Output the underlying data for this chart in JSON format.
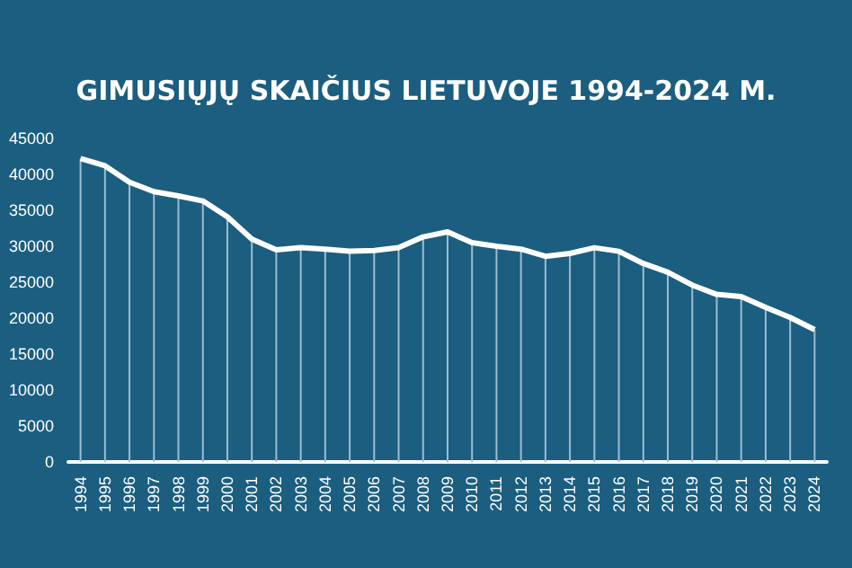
{
  "chart_data": {
    "type": "line",
    "title": "GIMUSIŲJŲ SKAIČIUS LIETUVOJE 1994-2024 M.",
    "categories": [
      "1994",
      "1995",
      "1996",
      "1997",
      "1998",
      "1999",
      "2000",
      "2001",
      "2002",
      "2003",
      "2004",
      "2005",
      "2006",
      "2007",
      "2008",
      "2009",
      "2010",
      "2011",
      "2012",
      "2013",
      "2014",
      "2015",
      "2016",
      "2017",
      "2018",
      "2019",
      "2020",
      "2021",
      "2022",
      "2023",
      "2024"
    ],
    "series": [
      {
        "type": "bar",
        "color": "#9dbdd0",
        "values": [
          42200,
          41200,
          38900,
          37600,
          37000,
          36300,
          34100,
          31000,
          29500,
          29800,
          29600,
          29300,
          29400,
          29800,
          31300,
          32000,
          30500,
          30000,
          29600,
          28600,
          29000,
          29800,
          29300,
          27600,
          26400,
          24600,
          23300,
          23000,
          21500,
          20100,
          18400
        ]
      },
      {
        "color": "#ffffff",
        "values": [
          42200,
          41200,
          38900,
          37600,
          37000,
          36300,
          34100,
          31000,
          29500,
          29800,
          29600,
          29300,
          29400,
          29800,
          31300,
          32000,
          30500,
          30000,
          29600,
          28600,
          29000,
          29800,
          29300,
          27600,
          26400,
          24600,
          23300,
          23000,
          21500,
          20100,
          18400
        ]
      }
    ],
    "ylim": [
      0,
      45000
    ],
    "yticks": [
      0,
      5000,
      10000,
      15000,
      20000,
      25000,
      30000,
      35000,
      40000,
      45000
    ],
    "grid": false,
    "marker": "none"
  }
}
